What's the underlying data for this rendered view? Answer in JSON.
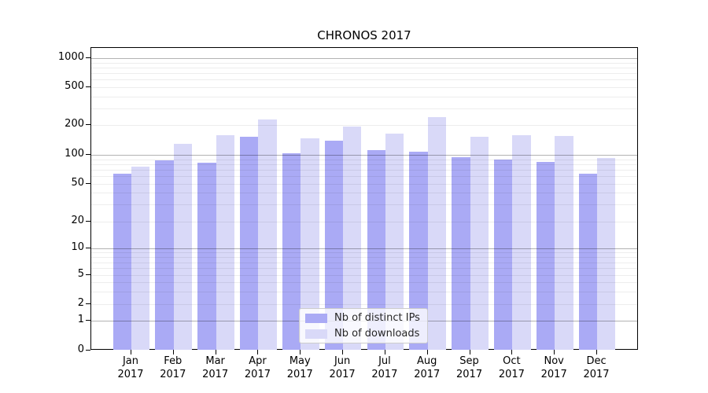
{
  "chart_data": {
    "type": "bar",
    "title": "CHRONOS 2017",
    "categories": [
      "Jan",
      "Feb",
      "Mar",
      "Apr",
      "May",
      "Jun",
      "Jul",
      "Aug",
      "Sep",
      "Oct",
      "Nov",
      "Dec"
    ],
    "category_year_line": "2017",
    "series": [
      {
        "name": "Nb of distinct IPs",
        "color": "#aaaaf5",
        "values": [
          64,
          88,
          83,
          152,
          104,
          138,
          112,
          108,
          95,
          90,
          84,
          63
        ]
      },
      {
        "name": "Nb of downloads",
        "color": "#d9d9f8",
        "values": [
          76,
          129,
          158,
          230,
          147,
          194,
          163,
          242,
          153,
          158,
          155,
          93
        ]
      }
    ],
    "xlabel": "",
    "ylabel": "",
    "yscale": "symlog",
    "ylim": [
      0,
      1000
    ],
    "y_tick_labels": [
      "1000",
      "500",
      "200",
      "100",
      "50",
      "20",
      "10",
      "5",
      "2",
      "1",
      "0"
    ],
    "y_tick_values": [
      1000,
      500,
      200,
      100,
      50,
      20,
      10,
      5,
      2,
      1,
      0
    ],
    "y_major_gridline_values": [
      1,
      10,
      100,
      1000
    ],
    "grid": true,
    "legend_position": "lower center"
  }
}
